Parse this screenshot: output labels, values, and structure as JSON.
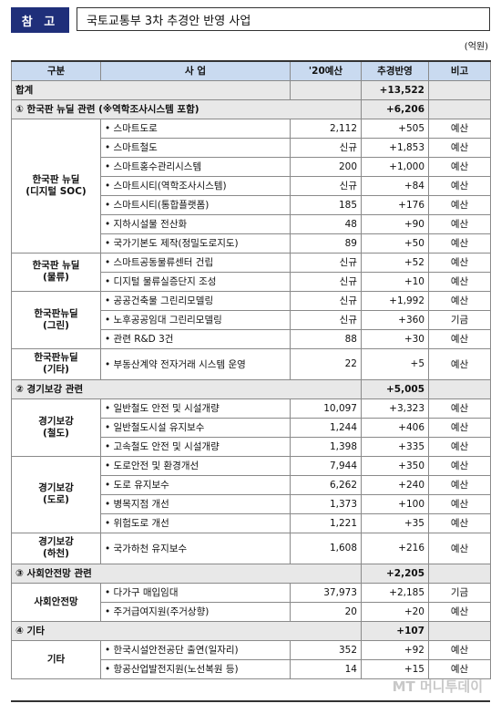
{
  "header": {
    "badge": "참 고",
    "title": "국토교통부 3차 추경안 반영 사업"
  },
  "unit": "(억원)",
  "columns": [
    "구분",
    "사 업",
    "'20예산",
    "추경반영",
    "비고"
  ],
  "total": {
    "label": "합계",
    "value": "+13,522"
  },
  "sections": [
    {
      "title": "① 한국판 뉴딜 관련 (※역학조사시스템 포함)",
      "value": "+6,206",
      "groups": [
        {
          "category": "한국판 뉴딜\n(디지털 SOC)",
          "rows": [
            {
              "item": "• 스마트도로",
              "budget": "2,112",
              "supp": "+505",
              "note": "예산"
            },
            {
              "item": "• 스마트철도",
              "budget": "신규",
              "supp": "+1,853",
              "note": "예산"
            },
            {
              "item": "• 스마트홍수관리시스템",
              "budget": "200",
              "supp": "+1,000",
              "note": "예산"
            },
            {
              "item": "• 스마트시티(역학조사시스템)",
              "budget": "신규",
              "supp": "+84",
              "note": "예산"
            },
            {
              "item": "• 스마트시티(통합플랫폼)",
              "budget": "185",
              "supp": "+176",
              "note": "예산"
            },
            {
              "item": "• 지하시설물 전산화",
              "budget": "48",
              "supp": "+90",
              "note": "예산"
            },
            {
              "item": "• 국가기본도 제작(정밀도로지도)",
              "budget": "89",
              "supp": "+50",
              "note": "예산"
            }
          ]
        },
        {
          "category": "한국판 뉴딜\n(물류)",
          "rows": [
            {
              "item": "• 스마트공동물류센터 건립",
              "budget": "신규",
              "supp": "+52",
              "note": "예산"
            },
            {
              "item": "• 디지털 물류실증단지 조성",
              "budget": "신규",
              "supp": "+10",
              "note": "예산"
            }
          ]
        },
        {
          "category": "한국판뉴딜\n(그린)",
          "rows": [
            {
              "item": "• 공공건축물 그린리모델링",
              "budget": "신규",
              "supp": "+1,992",
              "note": "예산"
            },
            {
              "item": "• 노후공공임대 그린리모델링",
              "budget": "신규",
              "supp": "+360",
              "note": "기금"
            },
            {
              "item": "• 관련 R&D 3건",
              "budget": "88",
              "supp": "+30",
              "note": "예산"
            }
          ]
        },
        {
          "category": "한국판뉴딜\n(기타)",
          "tall": true,
          "rows": [
            {
              "item": "• 부동산계약 전자거래 시스템 운영",
              "budget": "22",
              "supp": "+5",
              "note": "예산"
            }
          ]
        }
      ]
    },
    {
      "title": "② 경기보강 관련",
      "value": "+5,005",
      "groups": [
        {
          "category": "경기보강\n(철도)",
          "rows": [
            {
              "item": "• 일반철도 안전 및 시설개량",
              "budget": "10,097",
              "supp": "+3,323",
              "note": "예산"
            },
            {
              "item": "• 일반철도시설 유지보수",
              "budget": "1,244",
              "supp": "+406",
              "note": "예산"
            },
            {
              "item": "• 고속철도 안전 및 시설개량",
              "budget": "1,398",
              "supp": "+335",
              "note": "예산"
            }
          ]
        },
        {
          "category": "경기보강\n(도로)",
          "rows": [
            {
              "item": "• 도로안전 및 환경개선",
              "budget": "7,944",
              "supp": "+350",
              "note": "예산"
            },
            {
              "item": "• 도로 유지보수",
              "budget": "6,262",
              "supp": "+240",
              "note": "예산"
            },
            {
              "item": "• 병목지점 개선",
              "budget": "1,373",
              "supp": "+100",
              "note": "예산"
            },
            {
              "item": "• 위험도로 개선",
              "budget": "1,221",
              "supp": "+35",
              "note": "예산"
            }
          ]
        },
        {
          "category": "경기보강\n(하천)",
          "tall": true,
          "rows": [
            {
              "item": "• 국가하천 유지보수",
              "budget": "1,608",
              "supp": "+216",
              "note": "예산"
            }
          ]
        }
      ]
    },
    {
      "title": "③ 사회안전망 관련",
      "value": "+2,205",
      "groups": [
        {
          "category": "사회안전망",
          "rows": [
            {
              "item": "• 다가구 매입임대",
              "budget": "37,973",
              "supp": "+2,185",
              "note": "기금"
            },
            {
              "item": "• 주거급여지원(주거상향)",
              "budget": "20",
              "supp": "+20",
              "note": "예산"
            }
          ]
        }
      ]
    },
    {
      "title": "④ 기타",
      "value": "+107",
      "groups": [
        {
          "category": "기타",
          "rows": [
            {
              "item": "• 한국시설안전공단 출연(일자리)",
              "budget": "352",
              "supp": "+92",
              "note": "예산"
            },
            {
              "item": "• 항공산업발전지원(노선복원 등)",
              "budget": "14",
              "supp": "+15",
              "note": "예산"
            }
          ]
        }
      ]
    }
  ],
  "watermark": "MT 머니투데이"
}
